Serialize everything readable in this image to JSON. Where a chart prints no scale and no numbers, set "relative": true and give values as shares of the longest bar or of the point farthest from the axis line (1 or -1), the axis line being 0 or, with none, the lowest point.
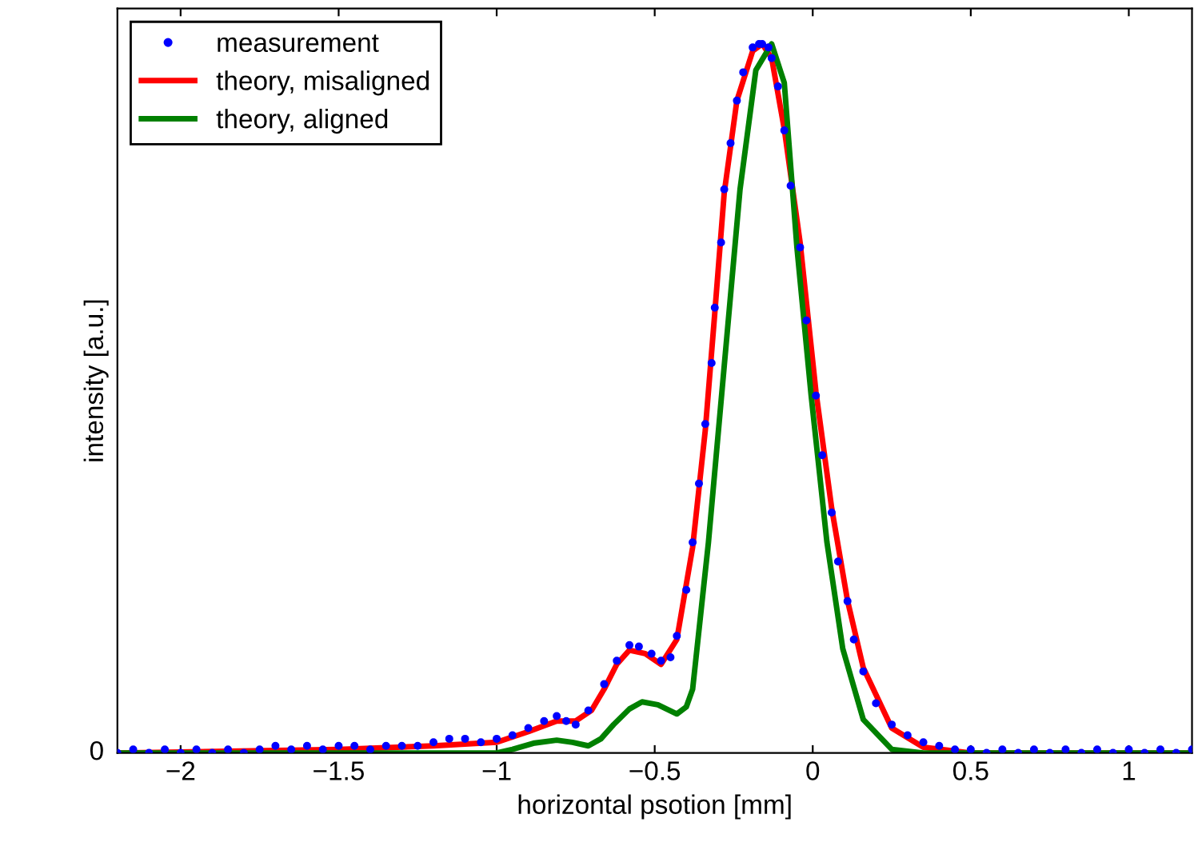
{
  "chart_data": {
    "type": "line",
    "relative": true,
    "xlabel": "horizontal psotion [mm]",
    "ylabel": "intensity [a.u.]",
    "xlim": [
      -2.2,
      1.2
    ],
    "xticks": [
      {
        "value": -2,
        "label": "−2"
      },
      {
        "value": -1.5,
        "label": "−1.5"
      },
      {
        "value": -1,
        "label": "−1"
      },
      {
        "value": -0.5,
        "label": "−0.5"
      },
      0,
      0.5,
      1
    ],
    "annotations": [
      "0"
    ],
    "grid": false,
    "legend": "top left",
    "series": [
      {
        "name": "measurement",
        "type": "scatter",
        "marker": "circle",
        "color": "#0000ff",
        "x": [
          -2.2,
          -2.15,
          -2.1,
          -2.05,
          -2.0,
          -1.95,
          -1.9,
          -1.85,
          -1.8,
          -1.75,
          -1.7,
          -1.65,
          -1.6,
          -1.55,
          -1.5,
          -1.45,
          -1.4,
          -1.35,
          -1.3,
          -1.25,
          -1.2,
          -1.15,
          -1.1,
          -1.05,
          -1.0,
          -0.95,
          -0.9,
          -0.85,
          -0.81,
          -0.78,
          -0.75,
          -0.71,
          -0.66,
          -0.62,
          -0.58,
          -0.55,
          -0.51,
          -0.48,
          -0.45,
          -0.43,
          -0.4,
          -0.38,
          -0.36,
          -0.34,
          -0.32,
          -0.31,
          -0.29,
          -0.28,
          -0.26,
          -0.24,
          -0.22,
          -0.19,
          -0.17,
          -0.16,
          -0.14,
          -0.13,
          -0.11,
          -0.09,
          -0.07,
          -0.04,
          -0.02,
          0.01,
          0.03,
          0.06,
          0.08,
          0.11,
          0.13,
          0.16,
          0.2,
          0.25,
          0.3,
          0.35,
          0.4,
          0.45,
          0.5,
          0.55,
          0.6,
          0.65,
          0.7,
          0.75,
          0.8,
          0.85,
          0.9,
          0.95,
          1.0,
          1.05,
          1.1,
          1.15,
          1.2
        ],
        "values": [
          0.0,
          0.005,
          0.0,
          0.005,
          0.0,
          0.005,
          0.0,
          0.005,
          0.0,
          0.005,
          0.01,
          0.005,
          0.01,
          0.005,
          0.01,
          0.01,
          0.005,
          0.01,
          0.01,
          0.01,
          0.015,
          0.02,
          0.02,
          0.015,
          0.02,
          0.025,
          0.035,
          0.045,
          0.052,
          0.045,
          0.04,
          0.06,
          0.097,
          0.13,
          0.152,
          0.15,
          0.14,
          0.13,
          0.135,
          0.165,
          0.23,
          0.297,
          0.38,
          0.464,
          0.55,
          0.628,
          0.72,
          0.795,
          0.86,
          0.92,
          0.96,
          0.995,
          1.0,
          1.0,
          0.995,
          0.98,
          0.94,
          0.878,
          0.8,
          0.713,
          0.61,
          0.504,
          0.42,
          0.339,
          0.27,
          0.214,
          0.16,
          0.115,
          0.07,
          0.04,
          0.025,
          0.015,
          0.01,
          0.005,
          0.005,
          0.0,
          0.005,
          0.0,
          0.005,
          0.0,
          0.005,
          0.0,
          0.005,
          0.0,
          0.005,
          0.0,
          0.005,
          0.0,
          0.005
        ]
      },
      {
        "name": "theory, misaligned",
        "type": "line",
        "color": "#ff0000",
        "x": [
          -2.2,
          -1.5,
          -1.2,
          -1.0,
          -0.9,
          -0.81,
          -0.75,
          -0.7,
          -0.66,
          -0.62,
          -0.58,
          -0.53,
          -0.48,
          -0.43,
          -0.38,
          -0.34,
          -0.31,
          -0.28,
          -0.24,
          -0.19,
          -0.16,
          -0.13,
          -0.09,
          -0.04,
          0.01,
          0.06,
          0.11,
          0.16,
          0.25,
          0.35,
          0.5,
          1.2
        ],
        "values": [
          0.0,
          0.005,
          0.01,
          0.015,
          0.03,
          0.045,
          0.045,
          0.06,
          0.09,
          0.125,
          0.145,
          0.14,
          0.125,
          0.16,
          0.29,
          0.455,
          0.62,
          0.79,
          0.92,
          0.99,
          1.0,
          0.98,
          0.88,
          0.72,
          0.51,
          0.345,
          0.215,
          0.12,
          0.035,
          0.008,
          0.0,
          0.0
        ]
      },
      {
        "name": "theory, aligned",
        "type": "line",
        "color": "#008000",
        "x": [
          -2.2,
          -1.0,
          -0.95,
          -0.88,
          -0.81,
          -0.76,
          -0.71,
          -0.67,
          -0.63,
          -0.58,
          -0.54,
          -0.49,
          -0.43,
          -0.4,
          -0.38,
          -0.33,
          -0.28,
          -0.23,
          -0.18,
          -0.13,
          -0.09,
          -0.05,
          -0.005,
          0.045,
          0.095,
          0.16,
          0.25,
          0.35,
          1.2
        ],
        "values": [
          0.0,
          0.0,
          0.005,
          0.014,
          0.018,
          0.015,
          0.01,
          0.02,
          0.04,
          0.062,
          0.072,
          0.068,
          0.055,
          0.065,
          0.09,
          0.297,
          0.546,
          0.795,
          0.963,
          1.0,
          0.945,
          0.713,
          0.504,
          0.297,
          0.147,
          0.047,
          0.005,
          0.0,
          0.0
        ]
      }
    ]
  }
}
